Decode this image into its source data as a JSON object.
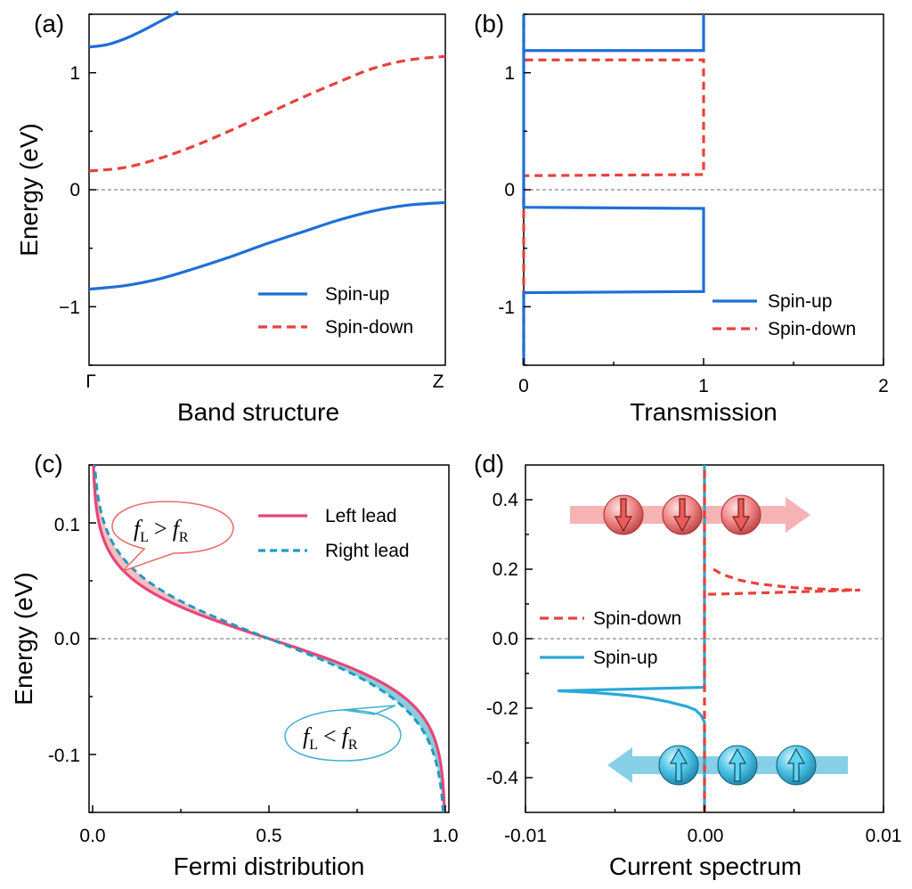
{
  "chart_data": [
    {
      "panel": "(a)",
      "type": "line",
      "xlabel": "Band structure",
      "ylabel": "Energy (eV)",
      "xticks": [
        "Γ",
        "Z"
      ],
      "yticks": [
        "−1",
        "0",
        "1"
      ],
      "ylim": [
        -1.5,
        1.5
      ],
      "legend_position": "bottom-right",
      "series": [
        {
          "name": "Spin-up",
          "color": "#1f6fd6",
          "style": "solid",
          "x": [
            0,
            0.05,
            0.1,
            0.15,
            0.2,
            0.25
          ],
          "y": [
            1.22,
            1.24,
            1.29,
            1.36,
            1.44,
            1.52
          ]
        },
        {
          "name": "",
          "color": "#1f6fd6",
          "style": "solid",
          "x": [
            0,
            0.1,
            0.2,
            0.3,
            0.4,
            0.5,
            0.6,
            0.7,
            0.8,
            0.9,
            1.0
          ],
          "y": [
            -0.85,
            -0.82,
            -0.76,
            -0.67,
            -0.57,
            -0.46,
            -0.36,
            -0.26,
            -0.18,
            -0.13,
            -0.11
          ]
        },
        {
          "name": "Spin-down",
          "color": "#e8413c",
          "style": "dashed",
          "x": [
            0,
            0.1,
            0.2,
            0.3,
            0.4,
            0.5,
            0.6,
            0.7,
            0.8,
            0.9,
            1.0
          ],
          "y": [
            0.16,
            0.19,
            0.27,
            0.38,
            0.51,
            0.65,
            0.79,
            0.92,
            1.04,
            1.11,
            1.14
          ]
        }
      ]
    },
    {
      "panel": "(b)",
      "type": "line",
      "xlabel": "Transmission",
      "ylabel": "",
      "xticks": [
        "0",
        "1",
        "2"
      ],
      "yticks": [
        "-1",
        "0",
        "1"
      ],
      "xlim": [
        0,
        2
      ],
      "ylim": [
        -1.5,
        1.5
      ],
      "legend_position": "bottom-right",
      "series": [
        {
          "name": "Spin-up",
          "color": "#1f6fd6",
          "style": "solid",
          "x": [
            0,
            0,
            1,
            1,
            0,
            0,
            0,
            1,
            1,
            0,
            0
          ],
          "y": [
            -1.5,
            -0.88,
            -0.87,
            -0.16,
            -0.15,
            1.0,
            1.19,
            1.19,
            1.5,
            1.5,
            1.19
          ]
        },
        {
          "name": "Spin-down",
          "color": "#e8413c",
          "style": "dashed",
          "x": [
            0,
            0,
            1,
            1,
            0,
            0
          ],
          "y": [
            -1.5,
            0.12,
            0.13,
            1.11,
            1.11,
            1.5
          ]
        }
      ]
    },
    {
      "panel": "(c)",
      "type": "line",
      "xlabel": "Fermi distribution",
      "ylabel": "Energy (eV)",
      "xticks": [
        "0.0",
        "0.5",
        "1.0"
      ],
      "yticks": [
        "-0.1",
        "0.0",
        "0.1"
      ],
      "xlim": [
        0,
        1
      ],
      "ylim": [
        -0.15,
        0.15
      ],
      "legend_position": "top-right",
      "annotations": {
        "upper": {
          "f": "f",
          "sub1": "L",
          "op": ">",
          "sub2": "R"
        },
        "lower": {
          "f": "f",
          "sub1": "L",
          "op": "<",
          "sub2": "R"
        }
      },
      "series": [
        {
          "name": "Left lead",
          "color": "#e8457a",
          "style": "solid",
          "kT": 0.025,
          "mu": 0.0
        },
        {
          "name": "Right lead",
          "color": "#1e9bc0",
          "style": "dashed",
          "kT": 0.025,
          "mu": 0.0
        }
      ]
    },
    {
      "panel": "(d)",
      "type": "line",
      "xlabel": "Current spectrum",
      "ylabel": "",
      "xticks": [
        "-0.01",
        "0.00",
        "0.01"
      ],
      "yticks": [
        "-0.4",
        "-0.2",
        "0.0",
        "0.2",
        "0.4"
      ],
      "xlim": [
        -0.01,
        0.01
      ],
      "ylim": [
        -0.5,
        0.5
      ],
      "legend_position": "middle-left",
      "series": [
        {
          "name": "Spin-down",
          "color": "#e8413c",
          "style": "dashed",
          "x": [
            0,
            0,
            0.0005,
            0.001,
            0.002,
            0.003,
            0.004,
            0.005,
            0.006,
            0.007,
            0.0087,
            0.0005,
            0
          ],
          "y": [
            -0.5,
            0.5,
            0.2,
            0.185,
            0.168,
            0.158,
            0.152,
            0.147,
            0.144,
            0.142,
            0.14,
            0.128,
            0.128
          ]
        },
        {
          "name": "Spin-up",
          "color": "#2aa8d8",
          "style": "solid",
          "x": [
            0,
            0,
            -0.0002,
            -0.0005,
            -0.001,
            -0.002,
            -0.003,
            -0.004,
            -0.005,
            -0.006,
            -0.007,
            -0.0082,
            0,
            0
          ],
          "y": [
            -0.5,
            -0.24,
            -0.22,
            -0.205,
            -0.195,
            -0.182,
            -0.172,
            -0.165,
            -0.16,
            -0.156,
            -0.153,
            -0.15,
            -0.14,
            0.5
          ]
        }
      ]
    }
  ]
}
